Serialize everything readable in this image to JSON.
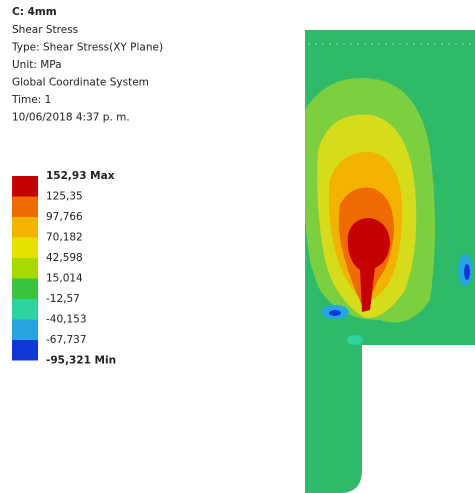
{
  "header": {
    "title": "C: 4mm",
    "lines": [
      "Shear Stress",
      "Type: Shear Stress(XY Plane)",
      "Unit: MPa",
      "Global Coordinate System",
      "Time: 1",
      "10/06/2018 4:37 p. m."
    ]
  },
  "legend": {
    "labels": [
      "152,93 Max",
      "125,35",
      "97,766",
      "70,182",
      "42,598",
      "15,014",
      "-12,57",
      "-40,153",
      "-67,737",
      "-95,321 Min"
    ],
    "bands": [
      "#c40000",
      "#ef6a00",
      "#f2b400",
      "#e5e200",
      "#a7d800",
      "#38c43e",
      "#2ed3a2",
      "#25a6e2",
      "#1237d8"
    ]
  }
}
